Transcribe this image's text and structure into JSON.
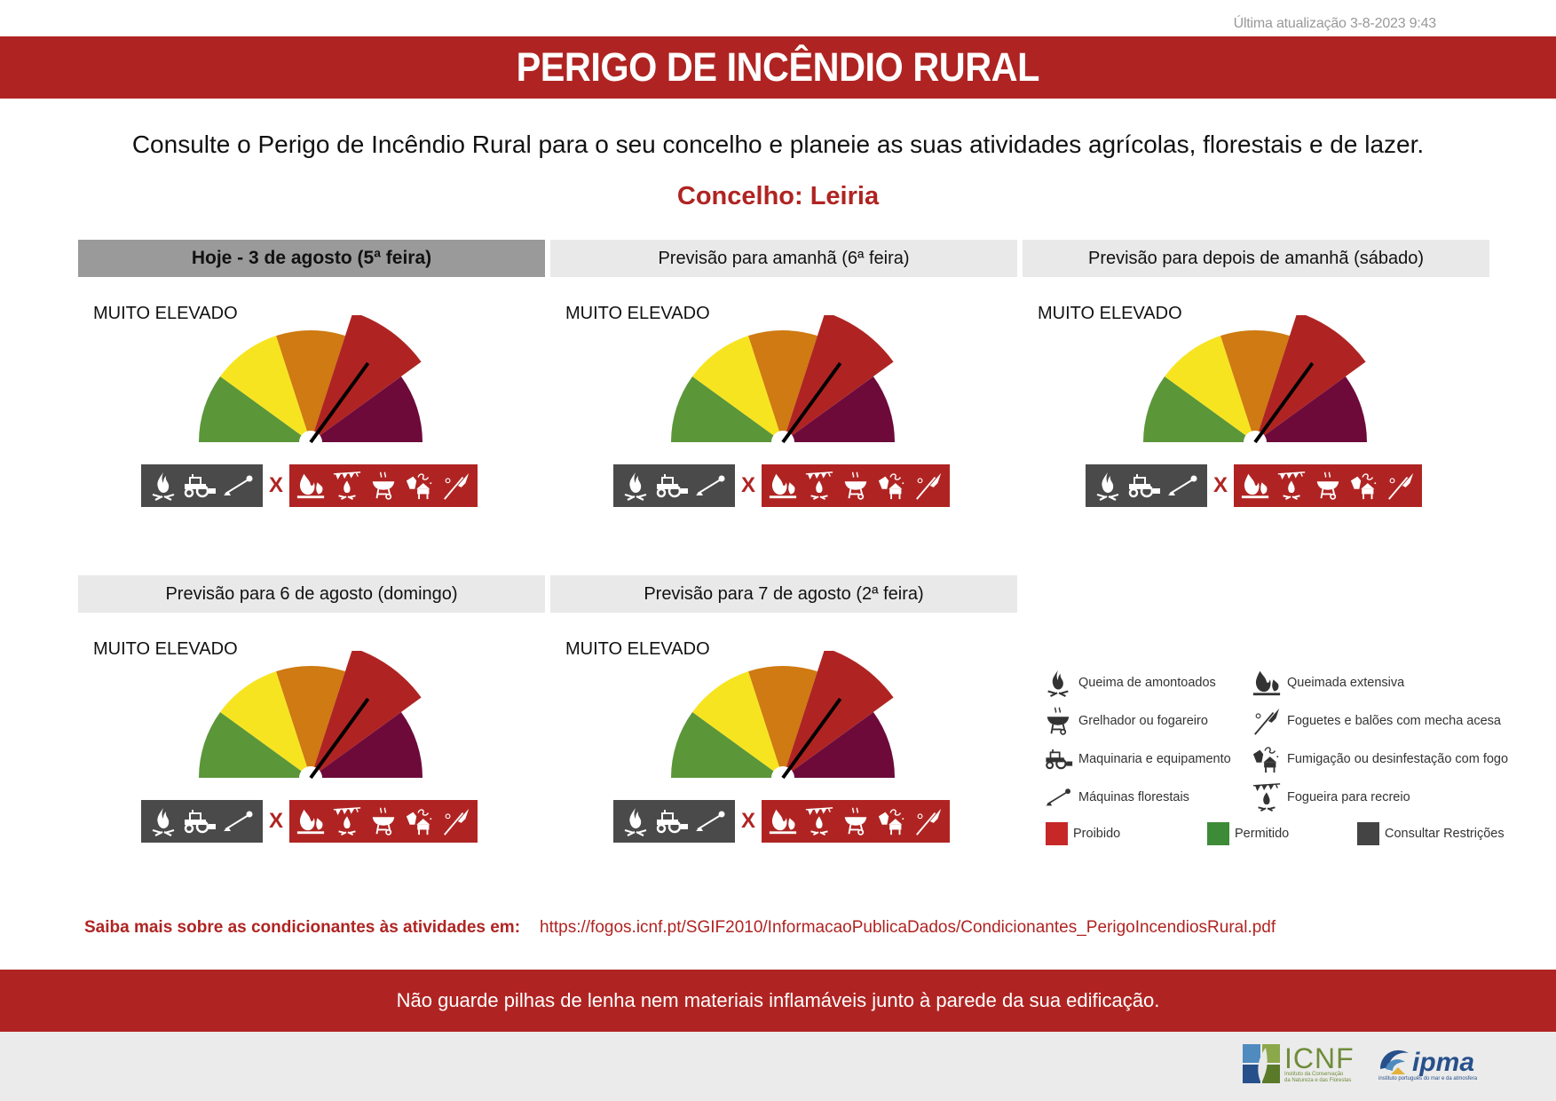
{
  "header": {
    "last_update": "Última atualização 3-8-2023 9:43",
    "title": "PERIGO DE INCÊNDIO RURAL",
    "subtitle": "Consulte o Perigo de Incêndio Rural para o seu concelho e planeie as suas atividades agrícolas, florestais e de lazer.",
    "concelho": "Concelho: Leiria"
  },
  "gauge_colors": {
    "reduzido": "#5b9639",
    "moderado": "#f7e421",
    "elevado": "#cf7a12",
    "muito_elevado": "#af2422",
    "maximo": "#6d0a3a"
  },
  "days": [
    {
      "header": "Hoje - 3 de agosto (5ª feira)",
      "level": "MUITO ELEVADO",
      "level_index": 3,
      "today": true
    },
    {
      "header": "Previsão para amanhã (6ª feira)",
      "level": "MUITO ELEVADO",
      "level_index": 3,
      "today": false
    },
    {
      "header": "Previsão para depois de amanhã (sábado)",
      "level": "MUITO ELEVADO",
      "level_index": 3,
      "today": false
    },
    {
      "header": "Previsão para 6 de agosto (domingo)",
      "level": "MUITO ELEVADO",
      "level_index": 3,
      "today": false
    },
    {
      "header": "Previsão para 7 de agosto (2ª feira)",
      "level": "MUITO ELEVADO",
      "level_index": 3,
      "today": false
    }
  ],
  "activity_status": {
    "restricted": [
      "queima-amontoados-icon",
      "maquinaria-icon",
      "maquinas-florestais-icon"
    ],
    "separator": "X",
    "prohibited": [
      "queimada-extensiva-icon",
      "fogueira-recreio-icon",
      "grelhador-icon",
      "fumigacao-icon",
      "foguetes-icon"
    ]
  },
  "legend": {
    "items": [
      {
        "icon": "queima-amontoados-icon",
        "label": "Queima de amontoados"
      },
      {
        "icon": "queimada-extensiva-icon",
        "label": "Queimada extensiva"
      },
      {
        "icon": "grelhador-icon",
        "label": "Grelhador ou fogareiro"
      },
      {
        "icon": "foguetes-icon",
        "label": "Foguetes e balões com mecha acesa"
      },
      {
        "icon": "maquinaria-icon",
        "label": "Maquinaria e equipamento"
      },
      {
        "icon": "fumigacao-icon",
        "label": "Fumigação ou desinfestação com fogo"
      },
      {
        "icon": "maquinas-florestais-icon",
        "label": "Máquinas florestais"
      },
      {
        "icon": "fogueira-recreio-icon",
        "label": "Fogueira para recreio"
      }
    ],
    "swatches": [
      {
        "label": "Proibido",
        "color": "#c62828"
      },
      {
        "label": "Permitido",
        "color": "#3d8b37"
      },
      {
        "label": "Consultar Restrições",
        "color": "#444444"
      }
    ]
  },
  "more_info": {
    "label": "Saiba mais sobre as condicionantes às atividades em:",
    "link": "https://fogos.icnf.pt/SGIF2010/InformacaoPublicaDados/Condicionantes_PerigoIncendiosRural.pdf"
  },
  "tip": "Não guarde pilhas de lenha nem materiais inflamáveis junto à parede da sua edificação.",
  "footer": {
    "icnf": {
      "name": "ICNF",
      "sub1": "Instituto da Conservação",
      "sub2": "da Natureza e das Florestas"
    },
    "ipma": {
      "name": "ipma",
      "sub": "instituto português do mar e da atmosfera"
    }
  }
}
